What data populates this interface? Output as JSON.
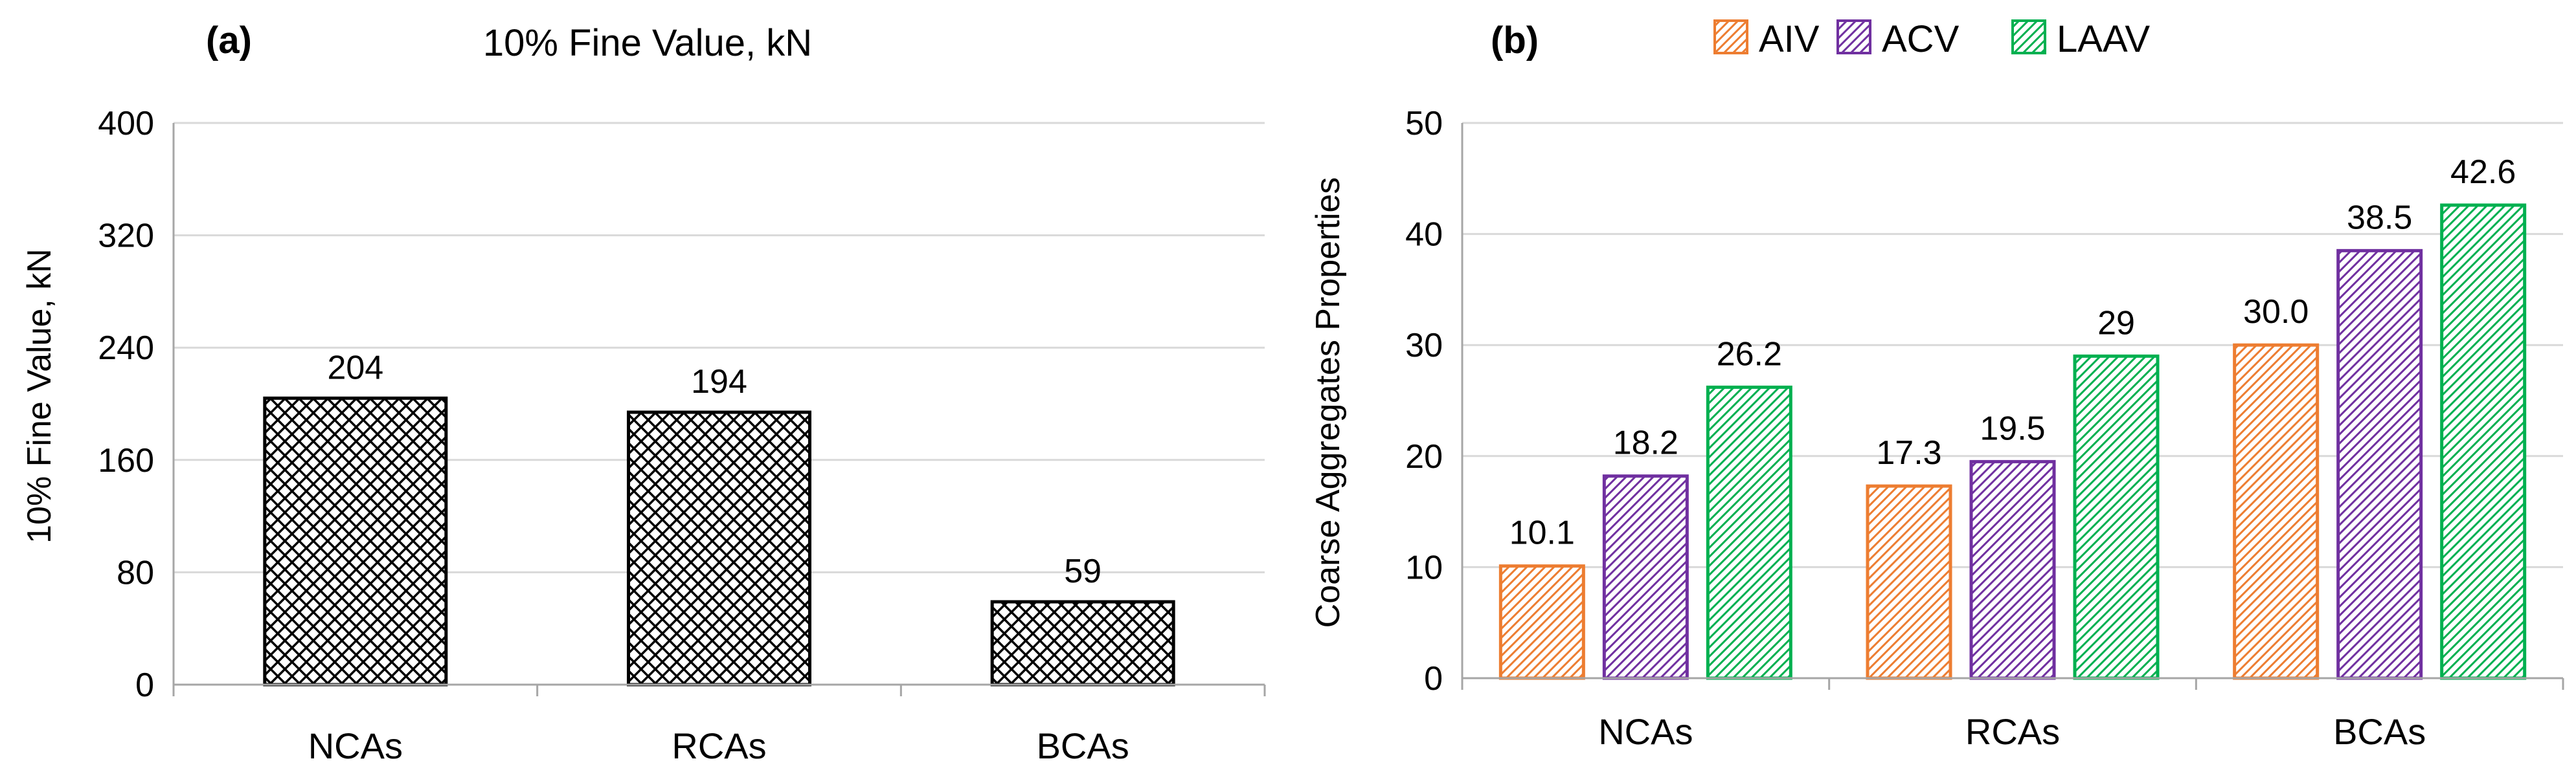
{
  "chart_data": [
    {
      "panel": "(a)",
      "type": "bar",
      "title": "10% Fine Value, kN",
      "xlabel": "",
      "ylabel": "10% Fine Value, kN",
      "ylim": [
        0,
        400
      ],
      "yticks": [
        0,
        80,
        160,
        240,
        320,
        400
      ],
      "categories": [
        "NCAs",
        "RCAs",
        "BCAs"
      ],
      "values": [
        204,
        194,
        59
      ],
      "value_labels": [
        "204",
        "194",
        "59"
      ],
      "grid": true,
      "pattern": "crosshatch"
    },
    {
      "panel": "(b)",
      "type": "bar",
      "title": "",
      "xlabel": "",
      "ylabel": "Coarse Aggregates Properties",
      "ylim": [
        0,
        50
      ],
      "yticks": [
        0,
        10,
        20,
        30,
        40,
        50
      ],
      "categories": [
        "NCAs",
        "RCAs",
        "BCAs"
      ],
      "legend_position": "top",
      "grid": true,
      "series": [
        {
          "name": "AIV",
          "color": "#ED7D31",
          "values": [
            10.1,
            17.3,
            30.0
          ],
          "value_labels": [
            "10.1",
            "17.3",
            "30.0"
          ]
        },
        {
          "name": "ACV",
          "color": "#7030A0",
          "values": [
            18.2,
            19.5,
            38.5
          ],
          "value_labels": [
            "18.2",
            "19.5",
            "38.5"
          ]
        },
        {
          "name": "LAAV",
          "color": "#00B050",
          "values": [
            26.2,
            29,
            42.6
          ],
          "value_labels": [
            "26.2",
            "29",
            "42.6"
          ]
        }
      ]
    }
  ]
}
